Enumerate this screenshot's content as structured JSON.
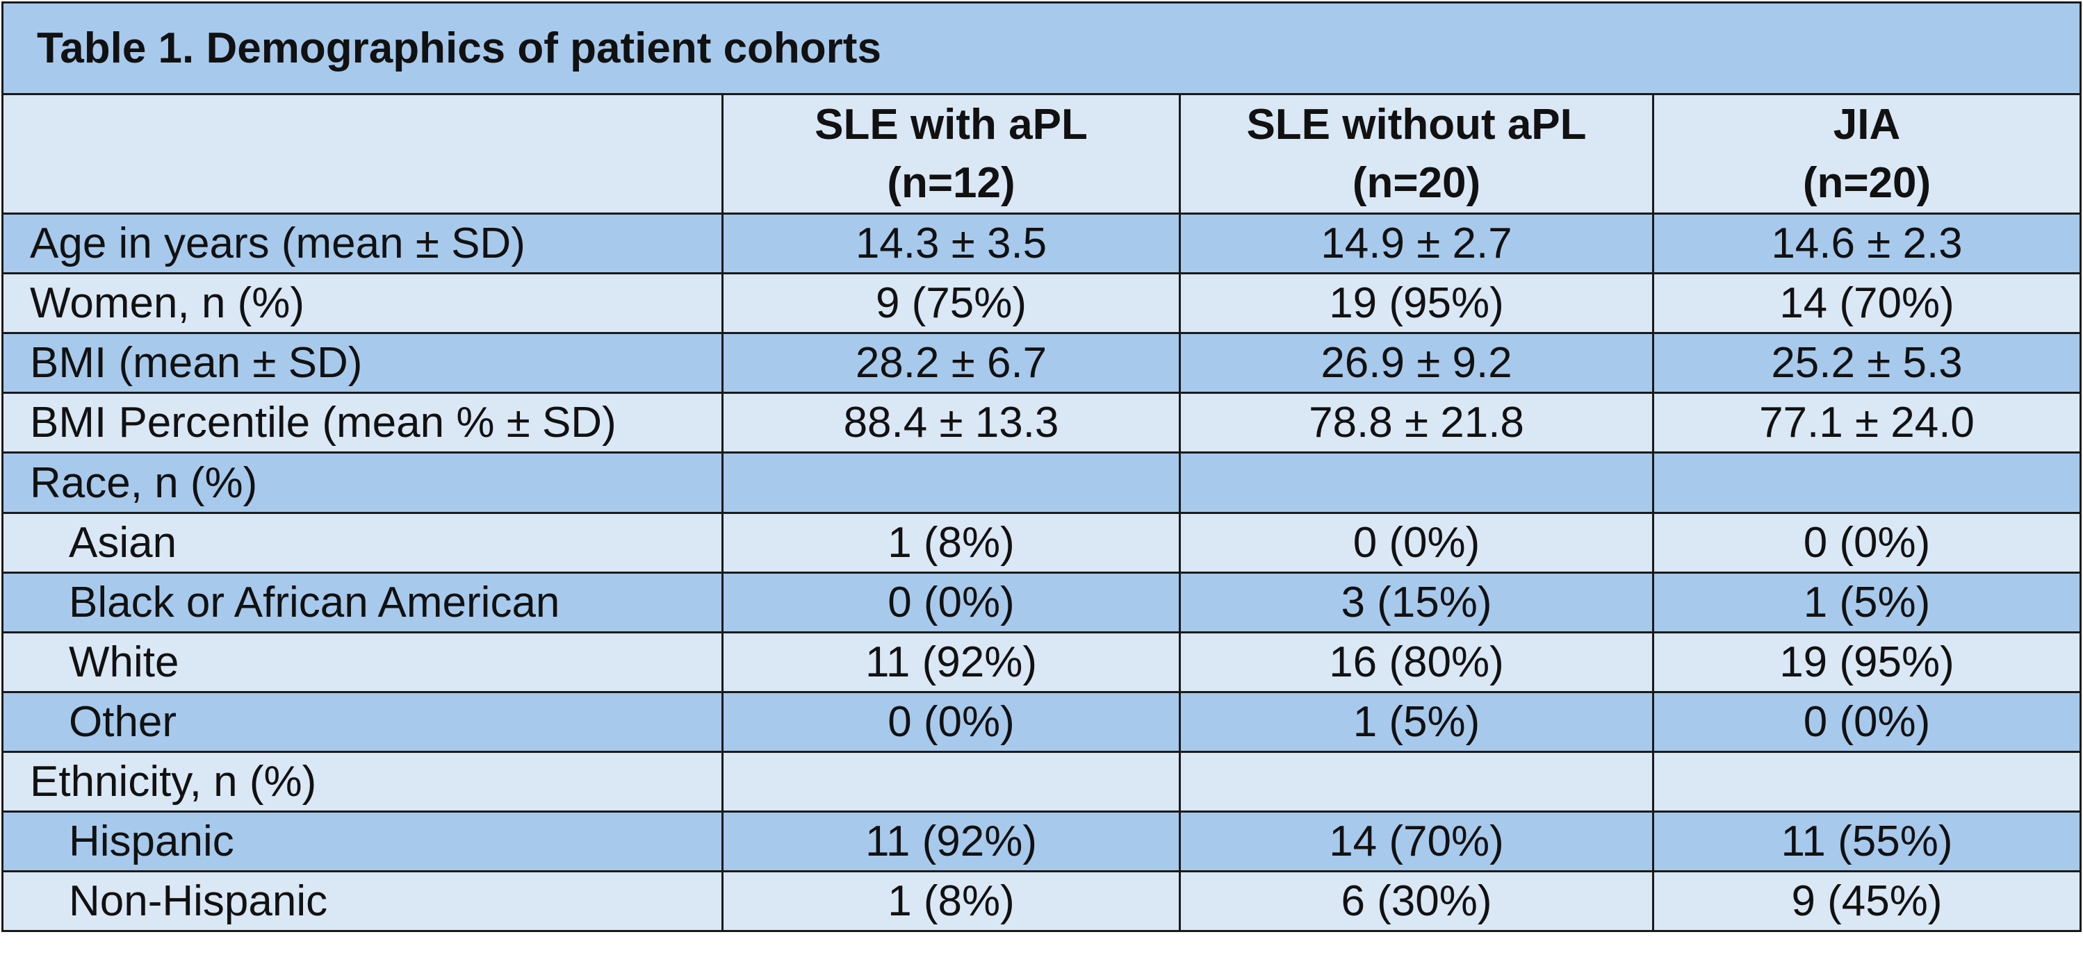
{
  "title": "Table 1. Demographics of patient cohorts",
  "columns": [
    {
      "name": "SLE with aPL",
      "n": "(n=12)"
    },
    {
      "name": "SLE without aPL",
      "n": "(n=20)"
    },
    {
      "name": "JIA",
      "n": "(n=20)"
    }
  ],
  "rows": [
    {
      "label": "Age in years (mean ± SD)",
      "values": [
        "14.3 ± 3.5",
        "14.9 ± 2.7",
        "14.6 ± 2.3"
      ]
    },
    {
      "label": "Women, n (%)",
      "values": [
        "9 (75%)",
        "19 (95%)",
        "14 (70%)"
      ]
    },
    {
      "label": "BMI (mean ± SD)",
      "values": [
        "28.2 ± 6.7",
        "26.9 ± 9.2",
        "25.2 ± 5.3"
      ]
    },
    {
      "label": "BMI Percentile (mean % ± SD)",
      "values": [
        "88.4 ± 13.3",
        "78.8 ± 21.8",
        "77.1 ± 24.0"
      ]
    },
    {
      "label": "Race, n (%)",
      "values": [
        "",
        "",
        ""
      ]
    },
    {
      "label": "Asian",
      "values": [
        "1 (8%)",
        "0 (0%)",
        "0 (0%)"
      ]
    },
    {
      "label": "Black or African American",
      "values": [
        "0 (0%)",
        "3 (15%)",
        "1 (5%)"
      ]
    },
    {
      "label": "White",
      "values": [
        "11 (92%)",
        "16 (80%)",
        "19 (95%)"
      ]
    },
    {
      "label": "Other",
      "values": [
        "0 (0%)",
        "1 (5%)",
        "0 (0%)"
      ]
    },
    {
      "label": "Ethnicity, n (%)",
      "values": [
        "",
        "",
        ""
      ]
    },
    {
      "label": "Hispanic",
      "values": [
        "11 (92%)",
        "14 (70%)",
        "11 (55%)"
      ]
    },
    {
      "label": "Non-Hispanic",
      "values": [
        "1 (8%)",
        "6 (30%)",
        "9 (45%)"
      ]
    }
  ],
  "colors": {
    "dark_row": "#a7c9ec",
    "light_row": "#dae7f5",
    "border": "#1a1a1a"
  }
}
